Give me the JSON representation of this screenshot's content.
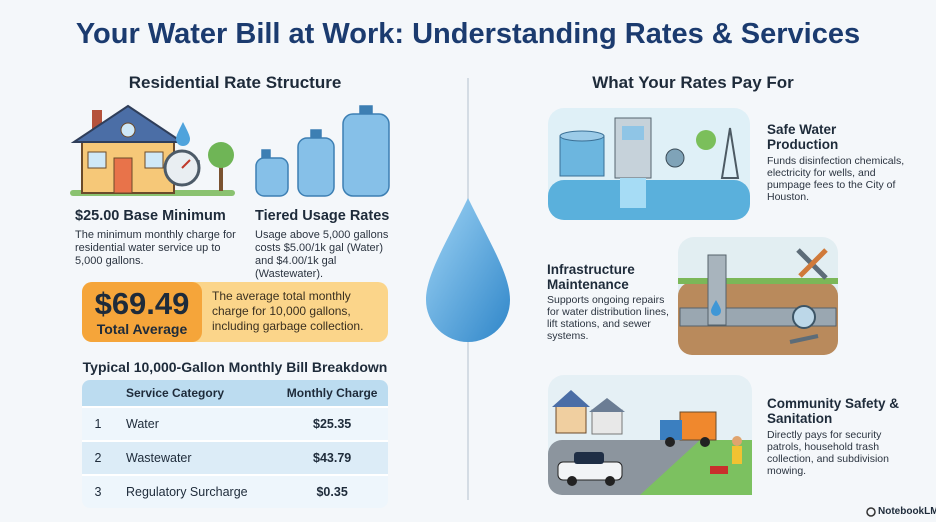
{
  "header": {
    "title": "Your Water Bill at Work: Understanding Rates & Services"
  },
  "left": {
    "heading": "Residential Rate Structure",
    "cards": [
      {
        "title": "$25.00 Base Minimum",
        "text": "The minimum monthly charge for residential water service up to 5,000 gallons."
      },
      {
        "title": "Tiered Usage Rates",
        "text": "Usage above 5,000 gallons costs $5.00/1k gal (Water) and $4.00/1k gal (Wastewater)."
      }
    ],
    "highlight": {
      "amount": "$69.49",
      "label": "Total Average",
      "text": "The average total monthly charge for 10,000 gallons, including garbage collection."
    },
    "table": {
      "title": "Typical 10,000-Gallon Monthly Bill Breakdown",
      "columns": [
        "Service Category",
        "Monthly Charge"
      ],
      "rows": [
        [
          "1",
          "Water",
          "$25.35"
        ],
        [
          "2",
          "Wastewater",
          "$43.79"
        ],
        [
          "3",
          "Regulatory Surcharge",
          "$0.35"
        ]
      ]
    }
  },
  "right": {
    "heading": "What Your Rates Pay For",
    "items": [
      {
        "title": "Safe Water Production",
        "text": "Funds disinfection chemicals, electricity for wells, and pumpage fees to the City of Houston."
      },
      {
        "title": "Infrastructure Maintenance",
        "text": "Supports ongoing repairs for water distribution lines, lift stations, and sewer systems."
      },
      {
        "title": "Community Safety & Sanitation",
        "text": "Directly pays for security patrols, household trash collection, and subdivision mowing."
      }
    ]
  },
  "footer": {
    "brand": "NotebookLM"
  }
}
